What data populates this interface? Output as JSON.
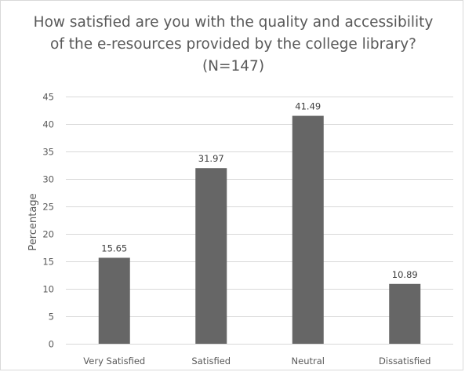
{
  "chart_data": {
    "type": "bar",
    "title": "How satisfied are you with the quality and accessibility of the e-resources provided by the college library? (N=147)",
    "xlabel": "",
    "ylabel": "Percentage",
    "categories": [
      "Very Satisfied",
      "Satisfied",
      "Neutral",
      "Dissatisfied"
    ],
    "values": [
      15.65,
      31.97,
      41.49,
      10.89
    ],
    "data_labels": [
      "15.65",
      "31.97",
      "41.49",
      "10.89"
    ],
    "ylim": [
      0,
      45
    ],
    "yticks": [
      0,
      5,
      10,
      15,
      20,
      25,
      30,
      35,
      40,
      45
    ],
    "grid": true,
    "legend": "none",
    "colors": {
      "bar": "#666666",
      "grid": "#d9d9d9",
      "text": "#595959"
    }
  }
}
